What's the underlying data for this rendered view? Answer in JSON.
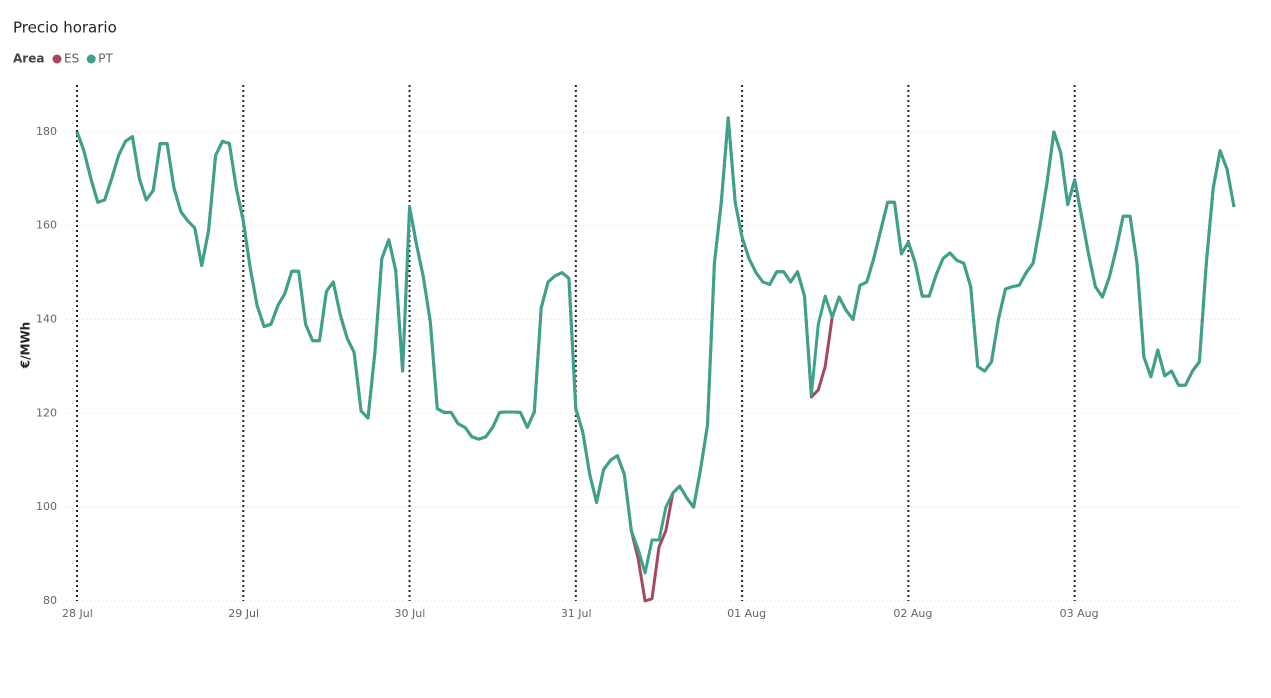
{
  "chart_data": {
    "type": "line",
    "title": "Precio horario",
    "legend_title": "Area",
    "ylabel": "€/MWh",
    "categories": [
      "28 Jul",
      null,
      null,
      null,
      null,
      null,
      null,
      null,
      null,
      null,
      null,
      null,
      null,
      null,
      null,
      null,
      null,
      null,
      null,
      null,
      null,
      null,
      null,
      null,
      "29 Jul",
      null,
      null,
      null,
      null,
      null,
      null,
      null,
      null,
      null,
      null,
      null,
      null,
      null,
      null,
      null,
      null,
      null,
      null,
      null,
      null,
      null,
      null,
      null,
      "30 Jul",
      null,
      null,
      null,
      null,
      null,
      null,
      null,
      null,
      null,
      null,
      null,
      null,
      null,
      null,
      null,
      null,
      null,
      null,
      null,
      null,
      null,
      null,
      null,
      "31 Jul",
      null,
      null,
      null,
      null,
      null,
      null,
      null,
      null,
      null,
      null,
      null,
      null,
      null,
      null,
      null,
      null,
      null,
      null,
      null,
      null,
      null,
      null,
      null,
      "01 Aug",
      null,
      null,
      null,
      null,
      null,
      null,
      null,
      null,
      null,
      null,
      null,
      null,
      null,
      null,
      null,
      null,
      null,
      null,
      null,
      null,
      null,
      null,
      null,
      "02 Aug",
      null,
      null,
      null,
      null,
      null,
      null,
      null,
      null,
      null,
      null,
      null,
      null,
      null,
      null,
      null,
      null,
      null,
      null,
      null,
      null,
      null,
      null,
      null,
      "03 Aug",
      null,
      null,
      null,
      null,
      null,
      null,
      null,
      null,
      null,
      null,
      null,
      null,
      null,
      null,
      null,
      null,
      null,
      null,
      null,
      null,
      null,
      null,
      null
    ],
    "series": [
      {
        "name": "ES",
        "color": "#a4485e",
        "values": [
          180,
          176,
          170,
          165,
          165.5,
          170,
          175,
          178,
          179,
          170,
          165.5,
          167.5,
          177.5,
          177.5,
          168,
          163,
          161,
          159.5,
          151.5,
          159,
          175,
          178,
          177.5,
          168,
          161,
          151,
          143,
          138.5,
          139,
          143,
          145.5,
          150.3,
          150.3,
          139,
          135.5,
          135.5,
          146,
          148,
          141,
          136,
          133,
          120.5,
          119,
          133,
          153,
          157,
          150.5,
          129,
          164,
          156,
          149,
          139.5,
          121,
          120.2,
          120.2,
          117.8,
          117,
          115,
          114.5,
          115,
          117,
          120.2,
          120.3,
          120.3,
          120.2,
          117,
          120.3,
          142.5,
          148,
          149.3,
          150,
          148.8,
          121,
          116,
          107,
          101,
          108,
          110,
          111,
          107,
          95,
          89,
          80,
          80.5,
          91.5,
          95,
          103,
          104.5,
          102,
          100,
          108,
          117.5,
          152,
          165,
          183,
          165,
          157.5,
          153,
          150,
          148,
          147.5,
          150.2,
          150.2,
          148,
          150.2,
          145,
          123.5,
          125,
          130,
          140.5,
          144.8,
          142,
          140,
          147.3,
          148,
          153,
          159,
          165,
          165,
          154,
          156.5,
          152,
          145,
          145,
          149.5,
          153,
          154.2,
          152.6,
          152,
          147,
          130,
          129,
          131,
          140,
          146.5,
          147,
          147.3,
          150,
          152,
          160,
          169,
          180,
          175.5,
          164.5,
          169.8,
          162,
          154,
          147,
          144.8,
          149,
          155,
          162,
          162,
          152,
          132,
          127.8,
          133.5,
          128,
          129,
          126,
          126,
          129,
          131,
          152,
          168,
          176,
          172,
          164
        ]
      },
      {
        "name": "PT",
        "color": "#3ba38b",
        "values": [
          180,
          176,
          170,
          165,
          165.5,
          170,
          175,
          178,
          179,
          170,
          165.5,
          167.5,
          177.5,
          177.5,
          168,
          163,
          161,
          159.5,
          151.5,
          159,
          175,
          178,
          177.5,
          168,
          161,
          151,
          143,
          138.5,
          139,
          143,
          145.5,
          150.3,
          150.3,
          139,
          135.5,
          135.5,
          146,
          148,
          141,
          136,
          133,
          120.5,
          119,
          133,
          153,
          157,
          150.5,
          129,
          164,
          156,
          149,
          139.5,
          121,
          120.2,
          120.2,
          117.8,
          117,
          115,
          114.5,
          115,
          117,
          120.2,
          120.3,
          120.3,
          120.2,
          117,
          120.3,
          142.5,
          148,
          149.3,
          150,
          148.8,
          121,
          116,
          107,
          101,
          108,
          110,
          111,
          107,
          95,
          91,
          86,
          93,
          93,
          100,
          103,
          104.5,
          102,
          100,
          108,
          117.5,
          152,
          165,
          183,
          165,
          157.5,
          153,
          150,
          148,
          147.5,
          150.2,
          150.2,
          148,
          150.2,
          145,
          124,
          139,
          145,
          140.5,
          144.8,
          142,
          140,
          147.3,
          148,
          153,
          159,
          165,
          165,
          154,
          156.5,
          152,
          145,
          145,
          149.5,
          153,
          154.2,
          152.6,
          152,
          147,
          130,
          129,
          131,
          140,
          146.5,
          147,
          147.3,
          150,
          152,
          160,
          169,
          180,
          175.5,
          164.5,
          169.8,
          162,
          154,
          147,
          144.8,
          149,
          155,
          162,
          162,
          152,
          132,
          127.8,
          133.5,
          128,
          129,
          126,
          126,
          129,
          131,
          152,
          168,
          176,
          172,
          164
        ]
      }
    ],
    "ylim": [
      80,
      190
    ],
    "yticks": [
      80,
      100,
      120,
      140,
      160,
      180
    ],
    "grid": true
  }
}
